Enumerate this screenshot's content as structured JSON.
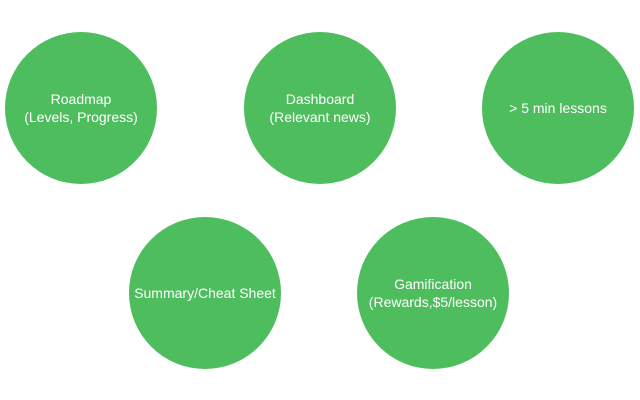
{
  "colors": {
    "bubble_fill": "#4ebd5e",
    "text": "#ffffff",
    "background": "#ffffff"
  },
  "bubbles": [
    {
      "line1": "Roadmap",
      "line2": "(Levels, Progress)"
    },
    {
      "line1": "Dashboard",
      "line2": "(Relevant news)"
    },
    {
      "line1": "> 5 min lessons",
      "line2": ""
    },
    {
      "line1": "Summary/Cheat Sheet",
      "line2": ""
    },
    {
      "line1": "Gamification",
      "line2": "(Rewards,$5/lesson)"
    }
  ]
}
